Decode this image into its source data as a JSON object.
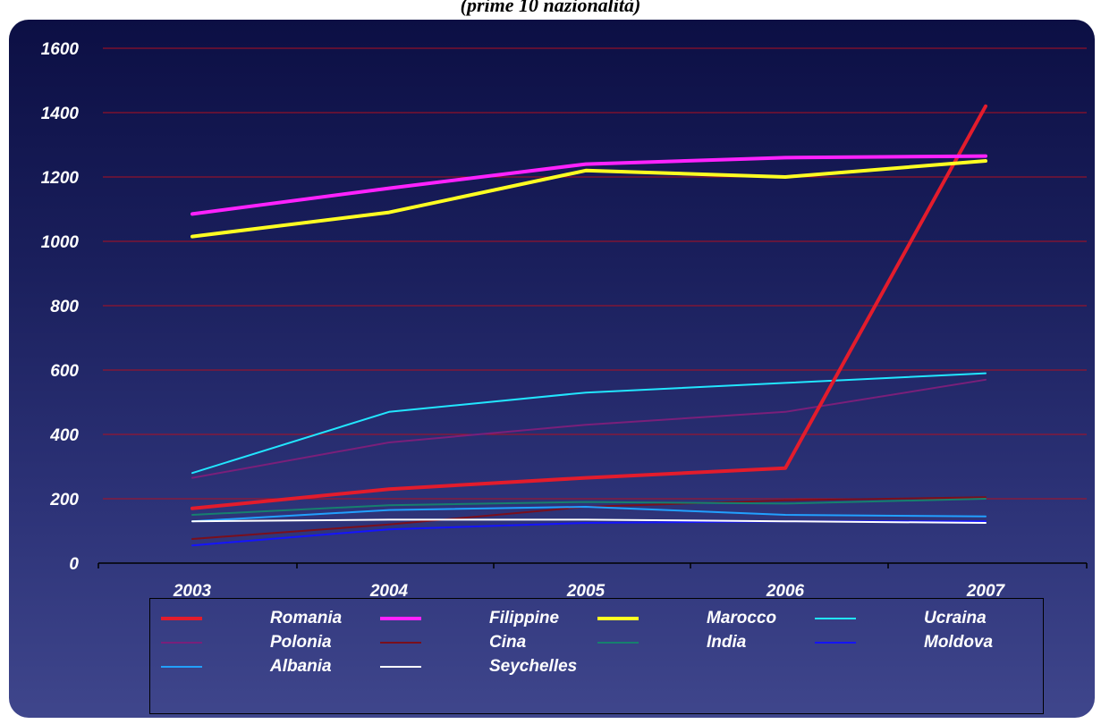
{
  "subtitle": "(prime 10 nazionalità)",
  "chart_data": {
    "type": "line",
    "title": "",
    "xlabel": "",
    "ylabel": "",
    "ylim": [
      0,
      1600
    ],
    "yticks": [
      0,
      200,
      400,
      600,
      800,
      1000,
      1200,
      1400,
      1600
    ],
    "x": [
      "2003",
      "2004",
      "2005",
      "2006",
      "2007"
    ],
    "grid": true,
    "legend_position": "bottom",
    "series": [
      {
        "name": "Romania",
        "color": "#e31c2c",
        "width": 4,
        "values": [
          170,
          230,
          265,
          295,
          1420
        ]
      },
      {
        "name": "Filippine",
        "color": "#ff22ff",
        "width": 4,
        "values": [
          1085,
          1165,
          1240,
          1260,
          1265
        ]
      },
      {
        "name": "Marocco",
        "color": "#ffff22",
        "width": 4,
        "values": [
          1015,
          1090,
          1220,
          1200,
          1250
        ]
      },
      {
        "name": "Ucraina",
        "color": "#22e6ff",
        "width": 2,
        "values": [
          280,
          470,
          530,
          560,
          590
        ]
      },
      {
        "name": "Polonia",
        "color": "#7a1f7a",
        "width": 2,
        "values": [
          265,
          375,
          430,
          470,
          570
        ]
      },
      {
        "name": "Cina",
        "color": "#7a0f1c",
        "width": 2,
        "values": [
          75,
          120,
          175,
          195,
          205
        ]
      },
      {
        "name": "India",
        "color": "#16806e",
        "width": 2,
        "values": [
          150,
          180,
          190,
          185,
          200
        ]
      },
      {
        "name": "Moldova",
        "color": "#1414ff",
        "width": 2,
        "values": [
          55,
          105,
          125,
          130,
          130
        ]
      },
      {
        "name": "Albania",
        "color": "#22a0ff",
        "width": 2,
        "values": [
          130,
          165,
          175,
          150,
          145
        ]
      },
      {
        "name": "Seychelles",
        "color": "#ffffff",
        "width": 2,
        "values": [
          130,
          135,
          135,
          130,
          125
        ]
      }
    ]
  }
}
